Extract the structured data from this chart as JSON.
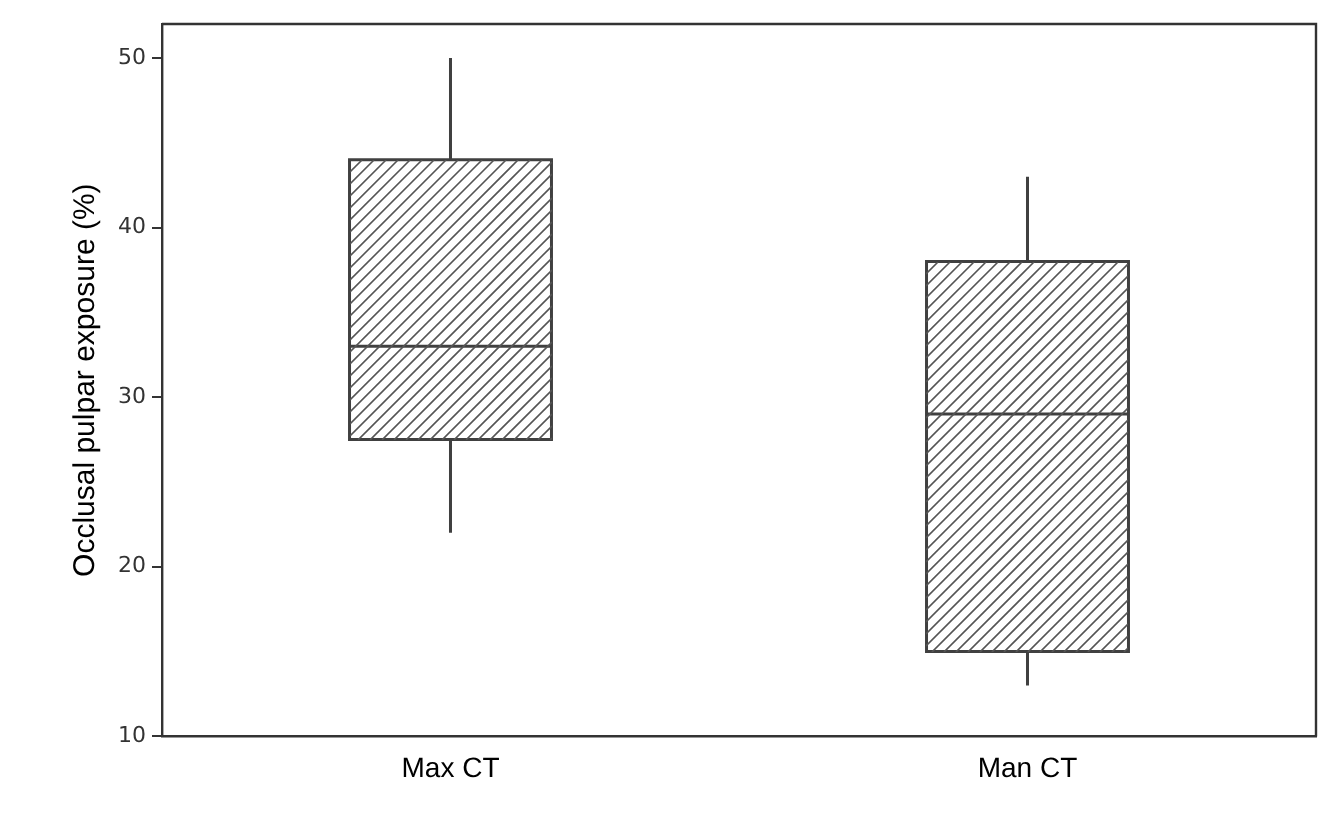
{
  "chart_data": {
    "type": "box",
    "ylabel": "Occlusal pulpar exposure (%)",
    "categories": [
      "Max CT",
      "Man CT"
    ],
    "boxes": [
      {
        "low": 22,
        "q1": 27.5,
        "median": 33,
        "q3": 44,
        "high": 50
      },
      {
        "low": 13,
        "q1": 15,
        "median": 29,
        "q3": 38,
        "high": 43
      }
    ],
    "color": "#404040",
    "ylim": [
      10,
      52
    ],
    "yticks": [
      10,
      20,
      30,
      40,
      50
    ],
    "grid": false,
    "legend": false
  }
}
